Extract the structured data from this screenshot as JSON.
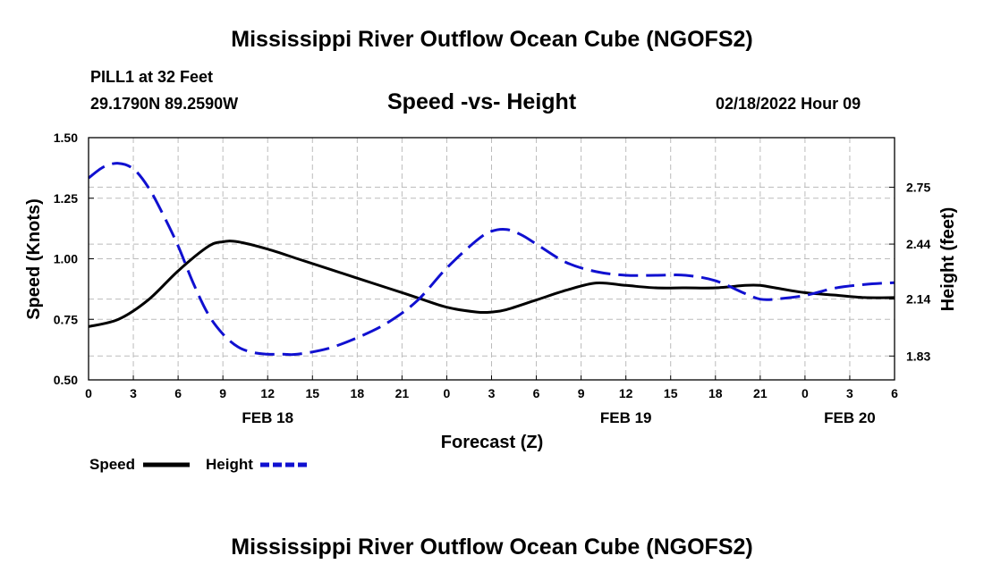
{
  "title": "Mississippi River Outflow Ocean Cube (NGOFS2)",
  "footer_title": "Mississippi River Outflow Ocean Cube (NGOFS2)",
  "station": "PILL1 at 32 Feet",
  "coordinates": "29.1790N  89.2590W",
  "subtitle": "Speed -vs- Height",
  "datetime": "02/18/2022 Hour 09",
  "colors": {
    "speed": "#000000",
    "height": "#1010d0",
    "grid": "#bbbbbb"
  },
  "chart_data": {
    "type": "line",
    "title": "Speed -vs- Height",
    "xlabel": "Forecast (Z)",
    "ylabel": "Speed (Knots)",
    "y2label": "Height (feet)",
    "xlim": [
      0,
      54
    ],
    "ylim": [
      0.5,
      1.5
    ],
    "y2lim": [
      1.7,
      3.02
    ],
    "x_ticks": [
      0,
      3,
      6,
      9,
      12,
      15,
      18,
      21,
      24,
      27,
      30,
      33,
      36,
      39,
      42,
      45,
      48,
      51,
      54
    ],
    "x_tick_labels": [
      "0",
      "3",
      "6",
      "9",
      "12",
      "15",
      "18",
      "21",
      "0",
      "3",
      "6",
      "9",
      "12",
      "15",
      "18",
      "21",
      "0",
      "3",
      "6"
    ],
    "date_labels": [
      {
        "x": 12,
        "label": "FEB 18"
      },
      {
        "x": 36,
        "label": "FEB 19"
      },
      {
        "x": 51,
        "label": "FEB 20"
      }
    ],
    "y_ticks": [
      0.5,
      0.75,
      1.0,
      1.25,
      1.5
    ],
    "y_tick_labels": [
      "0.50",
      "0.75",
      "1.00",
      "1.25",
      "1.50"
    ],
    "y2_ticks": [
      1.83,
      2.14,
      2.44,
      2.75
    ],
    "y2_tick_labels": [
      "1.83",
      "2.14",
      "2.44",
      "2.75"
    ],
    "grid": true,
    "series": [
      {
        "name": "Speed",
        "axis": "left",
        "style": "solid",
        "x": [
          0,
          2,
          4,
          6,
          8,
          9,
          10,
          12,
          14,
          16,
          18,
          20,
          22,
          24,
          26,
          27,
          28,
          30,
          32,
          34,
          36,
          38,
          40,
          42,
          44,
          45,
          46,
          48,
          50,
          52,
          54
        ],
        "y": [
          0.72,
          0.75,
          0.83,
          0.95,
          1.05,
          1.07,
          1.07,
          1.04,
          1.0,
          0.96,
          0.92,
          0.88,
          0.84,
          0.8,
          0.78,
          0.78,
          0.79,
          0.83,
          0.87,
          0.9,
          0.89,
          0.88,
          0.88,
          0.88,
          0.89,
          0.89,
          0.88,
          0.86,
          0.85,
          0.84,
          0.84
        ]
      },
      {
        "name": "Height",
        "axis": "right",
        "style": "dashed",
        "x": [
          0,
          1,
          2,
          3,
          4,
          5,
          6,
          7,
          8,
          9,
          10,
          11,
          12,
          13,
          14,
          16,
          18,
          20,
          22,
          24,
          26,
          27,
          28,
          29,
          30,
          32,
          34,
          36,
          38,
          40,
          42,
          44,
          45,
          46,
          48,
          50,
          52,
          54
        ],
        "y": [
          2.8,
          2.86,
          2.88,
          2.85,
          2.75,
          2.6,
          2.43,
          2.23,
          2.06,
          1.95,
          1.88,
          1.85,
          1.84,
          1.84,
          1.84,
          1.87,
          1.93,
          2.01,
          2.13,
          2.31,
          2.46,
          2.51,
          2.52,
          2.49,
          2.44,
          2.34,
          2.29,
          2.27,
          2.27,
          2.27,
          2.24,
          2.17,
          2.14,
          2.14,
          2.16,
          2.2,
          2.22,
          2.23
        ]
      }
    ]
  }
}
